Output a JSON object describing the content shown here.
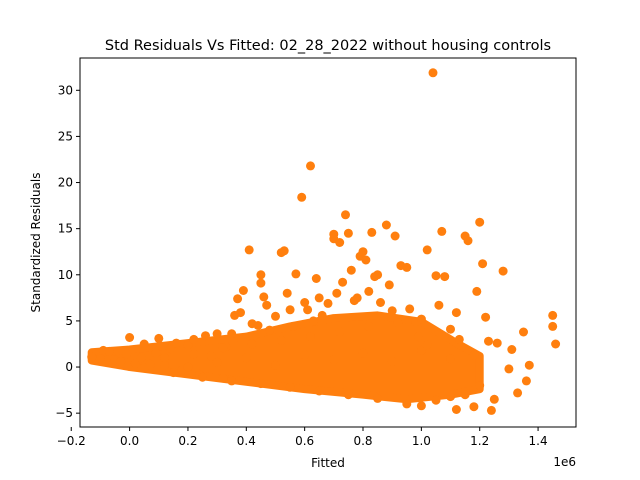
{
  "chart_data": {
    "type": "scatter",
    "title": "Std Residuals Vs Fitted: 02_28_2022 without housing controls",
    "xlabel": "Fitted",
    "ylabel": "Standardized Residuals",
    "x_offset_label": "1e6",
    "xlim": [
      -0.17,
      1.53
    ],
    "ylim": [
      -6.5,
      33.5
    ],
    "x_ticks": [
      -0.2,
      0.0,
      0.2,
      0.4,
      0.6,
      0.8,
      1.0,
      1.2,
      1.4
    ],
    "x_tick_labels": [
      "−0.2",
      "0.0",
      "0.2",
      "0.4",
      "0.6",
      "0.8",
      "1.0",
      "1.2",
      "1.4"
    ],
    "y_ticks": [
      -5,
      0,
      5,
      10,
      15,
      20,
      25,
      30
    ],
    "y_tick_labels": [
      "−5",
      "0",
      "5",
      "10",
      "15",
      "20",
      "25",
      "30"
    ],
    "grid": false,
    "marker_color": "#ff7f0e",
    "series": [
      {
        "values_note": "",
        "points": [
          [
            -0.13,
            1.1
          ],
          [
            -0.1,
            0.9
          ],
          [
            -0.09,
            1.8
          ],
          [
            -0.07,
            1.7
          ],
          [
            -0.05,
            0.8
          ],
          [
            -0.03,
            0.6
          ],
          [
            -0.01,
            1.4
          ],
          [
            0.0,
            3.2
          ],
          [
            0.02,
            0.4
          ],
          [
            0.04,
            1.0
          ],
          [
            0.05,
            2.5
          ],
          [
            0.07,
            0.3
          ],
          [
            0.09,
            1.5
          ],
          [
            0.1,
            3.1
          ],
          [
            0.12,
            0.2
          ],
          [
            0.14,
            2.0
          ],
          [
            0.16,
            2.6
          ],
          [
            0.18,
            -0.3
          ],
          [
            0.2,
            2.4
          ],
          [
            0.22,
            3.0
          ],
          [
            0.24,
            -0.8
          ],
          [
            0.26,
            3.4
          ],
          [
            0.28,
            1.2
          ],
          [
            0.3,
            3.6
          ],
          [
            0.32,
            -1.2
          ],
          [
            0.33,
            2.2
          ],
          [
            0.35,
            3.6
          ],
          [
            0.36,
            5.6
          ],
          [
            0.37,
            7.4
          ],
          [
            0.38,
            5.9
          ],
          [
            0.39,
            8.3
          ],
          [
            0.41,
            12.7
          ],
          [
            0.42,
            4.7
          ],
          [
            0.44,
            4.5
          ],
          [
            0.45,
            9.1
          ],
          [
            0.45,
            10.0
          ],
          [
            0.46,
            7.6
          ],
          [
            0.47,
            6.7
          ],
          [
            0.48,
            4.0
          ],
          [
            0.5,
            5.5
          ],
          [
            0.52,
            12.4
          ],
          [
            0.53,
            12.6
          ],
          [
            0.54,
            8.0
          ],
          [
            0.55,
            6.2
          ],
          [
            0.56,
            4.4
          ],
          [
            0.57,
            10.1
          ],
          [
            0.59,
            18.4
          ],
          [
            0.6,
            7.0
          ],
          [
            0.61,
            6.2
          ],
          [
            0.62,
            21.8
          ],
          [
            0.63,
            5.0
          ],
          [
            0.64,
            9.6
          ],
          [
            0.65,
            7.5
          ],
          [
            0.66,
            5.6
          ],
          [
            0.68,
            6.9
          ],
          [
            0.7,
            14.4
          ],
          [
            0.7,
            13.9
          ],
          [
            0.71,
            8.0
          ],
          [
            0.72,
            13.5
          ],
          [
            0.73,
            9.2
          ],
          [
            0.74,
            16.5
          ],
          [
            0.75,
            14.5
          ],
          [
            0.76,
            10.5
          ],
          [
            0.77,
            7.2
          ],
          [
            0.78,
            7.5
          ],
          [
            0.79,
            12.0
          ],
          [
            0.8,
            12.5
          ],
          [
            0.81,
            11.6
          ],
          [
            0.82,
            8.2
          ],
          [
            0.83,
            14.6
          ],
          [
            0.84,
            9.8
          ],
          [
            0.85,
            10.0
          ],
          [
            0.86,
            7.0
          ],
          [
            0.88,
            15.4
          ],
          [
            0.89,
            8.9
          ],
          [
            0.9,
            6.1
          ],
          [
            0.91,
            14.2
          ],
          [
            0.93,
            11.0
          ],
          [
            0.95,
            10.8
          ],
          [
            0.96,
            6.3
          ],
          [
            0.98,
            4.9
          ],
          [
            0.99,
            3.3
          ],
          [
            1.0,
            5.2
          ],
          [
            1.02,
            12.7
          ],
          [
            1.04,
            31.9
          ],
          [
            1.05,
            9.9
          ],
          [
            1.06,
            6.7
          ],
          [
            1.07,
            14.7
          ],
          [
            1.08,
            9.8
          ],
          [
            1.1,
            4.1
          ],
          [
            1.12,
            5.9
          ],
          [
            1.13,
            3.0
          ],
          [
            1.15,
            14.2
          ],
          [
            1.16,
            13.7
          ],
          [
            1.18,
            1.3
          ],
          [
            1.19,
            8.2
          ],
          [
            1.2,
            15.7
          ],
          [
            1.21,
            11.2
          ],
          [
            1.22,
            5.4
          ],
          [
            1.23,
            2.8
          ],
          [
            1.25,
            -3.5
          ],
          [
            1.26,
            2.6
          ],
          [
            1.28,
            10.4
          ],
          [
            1.3,
            -0.2
          ],
          [
            1.31,
            1.9
          ],
          [
            1.33,
            -2.8
          ],
          [
            1.35,
            3.8
          ],
          [
            1.36,
            -1.5
          ],
          [
            1.37,
            0.2
          ],
          [
            1.45,
            5.6
          ],
          [
            1.45,
            4.4
          ],
          [
            1.46,
            2.5
          ],
          [
            0.95,
            -4.0
          ],
          [
            1.0,
            -4.2
          ],
          [
            1.05,
            -3.6
          ],
          [
            1.12,
            -4.6
          ],
          [
            1.18,
            -4.3
          ],
          [
            1.24,
            -4.7
          ],
          [
            0.85,
            -3.4
          ],
          [
            0.75,
            -3.0
          ],
          [
            0.65,
            -2.6
          ],
          [
            0.55,
            -2.2
          ],
          [
            0.45,
            -1.8
          ],
          [
            0.35,
            -1.5
          ],
          [
            0.25,
            -1.1
          ],
          [
            0.15,
            -0.6
          ],
          [
            0.05,
            -0.1
          ],
          [
            1.1,
            -3.2
          ],
          [
            1.15,
            -3.0
          ],
          [
            1.2,
            -2.0
          ],
          [
            0.2,
            0.0
          ],
          [
            0.3,
            0.5
          ],
          [
            0.4,
            1.0
          ],
          [
            0.5,
            0.2
          ],
          [
            0.6,
            1.3
          ],
          [
            0.7,
            0.8
          ],
          [
            0.8,
            1.5
          ],
          [
            0.9,
            0.6
          ],
          [
            1.0,
            1.8
          ],
          [
            1.1,
            0.9
          ],
          [
            0.12,
            1.0
          ],
          [
            0.22,
            1.4
          ],
          [
            0.32,
            2.1
          ],
          [
            0.42,
            2.5
          ],
          [
            0.52,
            2.9
          ],
          [
            0.62,
            3.3
          ],
          [
            0.72,
            3.8
          ],
          [
            0.82,
            4.4
          ],
          [
            0.92,
            4.8
          ],
          [
            1.02,
            2.4
          ]
        ]
      }
    ]
  }
}
